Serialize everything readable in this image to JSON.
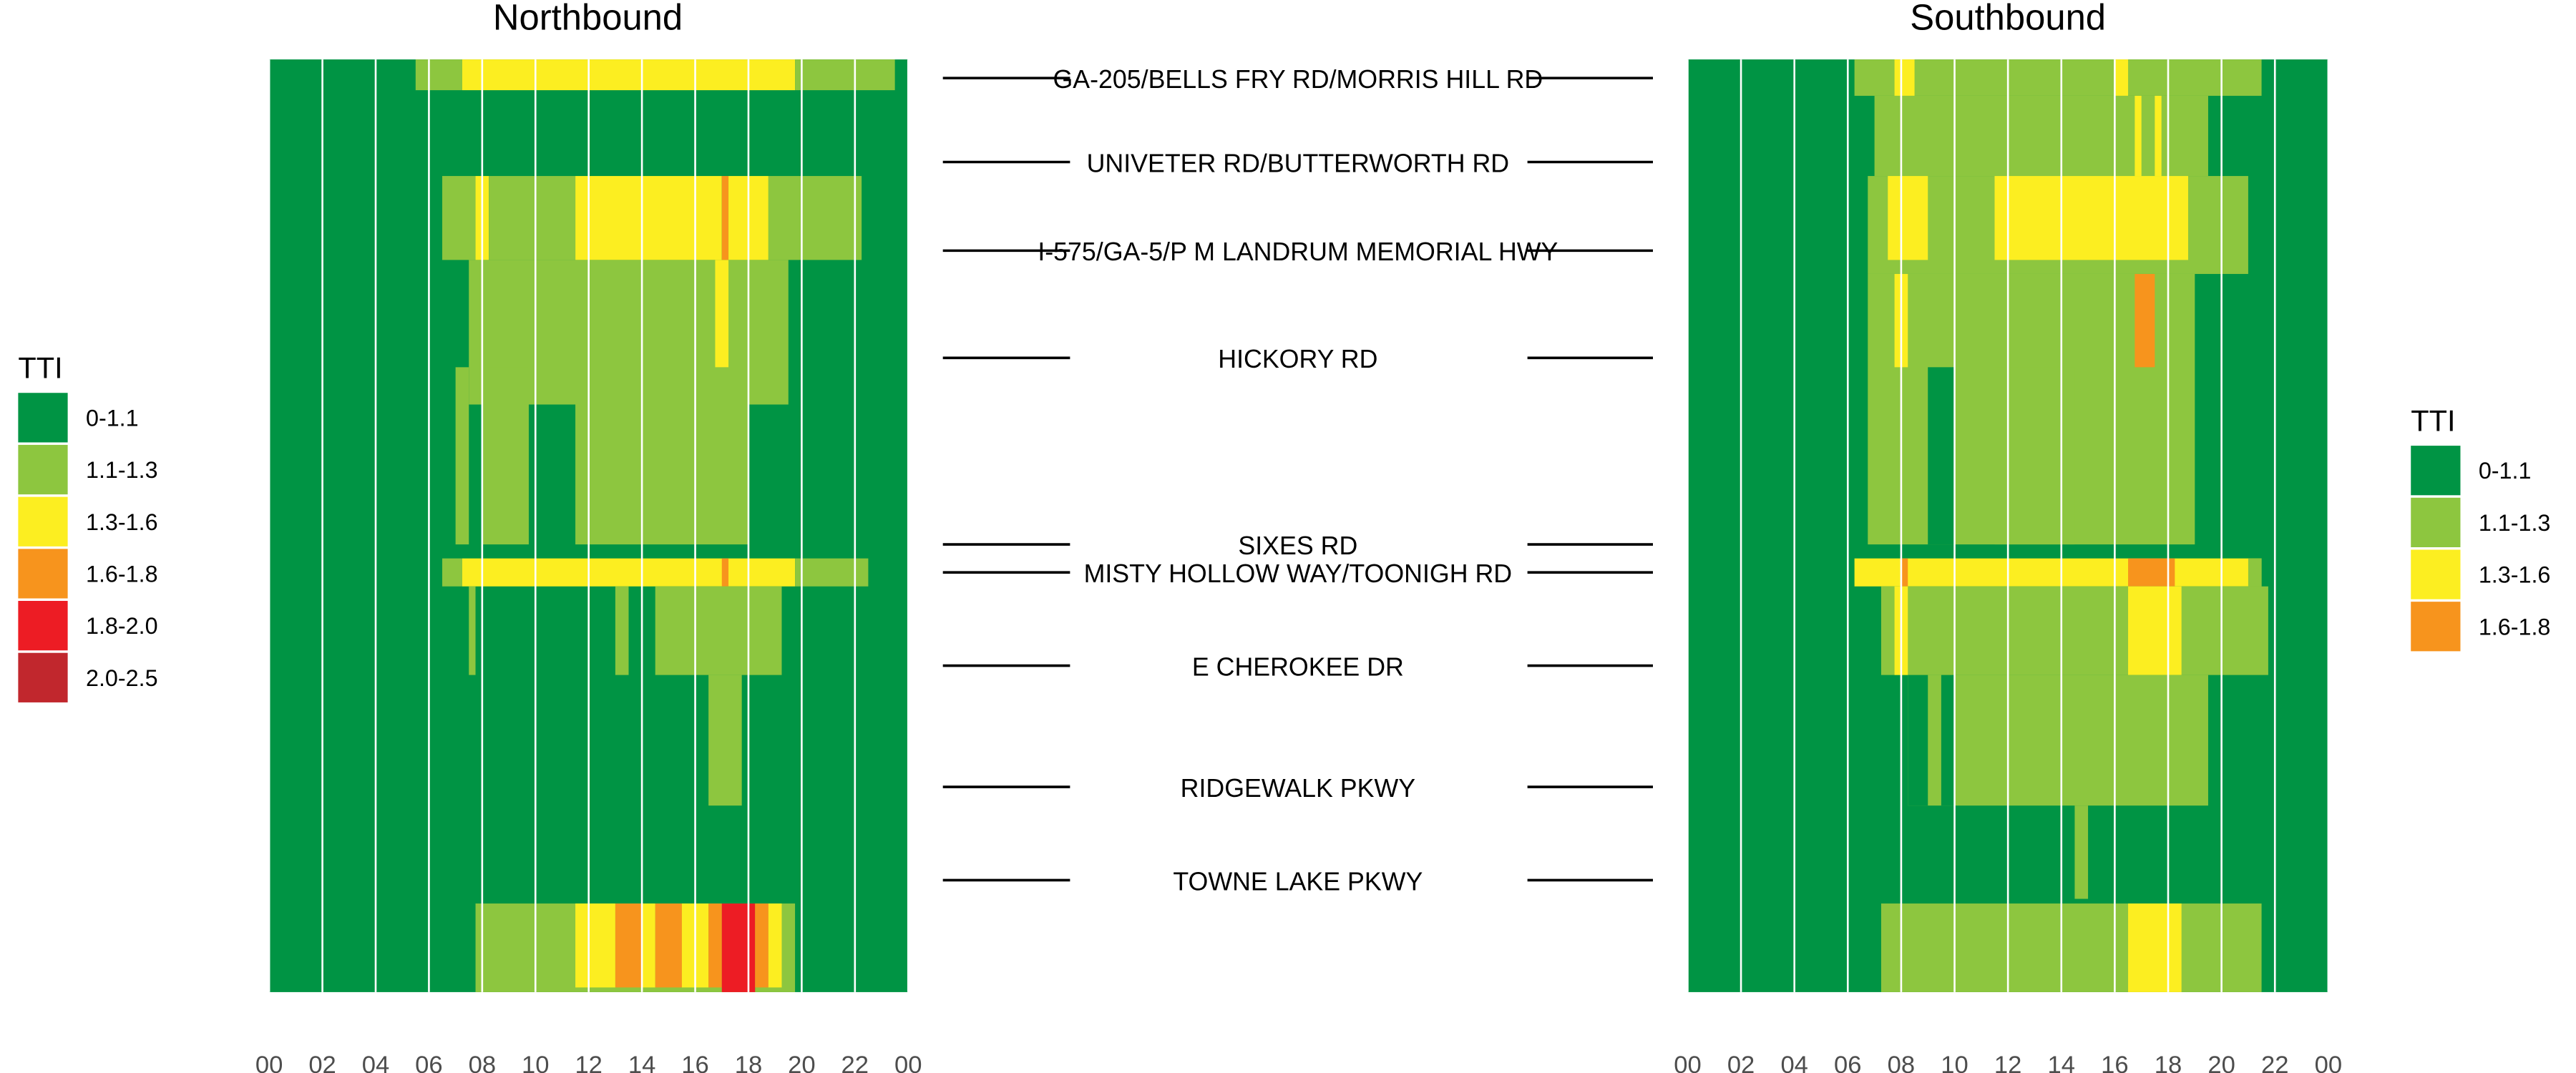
{
  "chart_data": {
    "type": "heatmap",
    "hour_ticks": [
      "00",
      "02",
      "04",
      "06",
      "08",
      "10",
      "12",
      "14",
      "16",
      "18",
      "20",
      "22",
      "00"
    ],
    "roads": [
      "GA-205/BELLS FRY RD/MORRIS HILL RD",
      "UNIVETER RD/BUTTERWORTH RD",
      "I-575/GA-5/P M LANDRUM MEMORIAL HWY",
      "HICKORY RD",
      "SIXES RD",
      "MISTY HOLLOW WAY/TOONIGH RD",
      "E CHEROKEE DR",
      "RIDGEWALK PKWY",
      "TOWNE LAKE PKWY"
    ],
    "road_positions": [
      2,
      11,
      20.5,
      32,
      52,
      55,
      65,
      78,
      88
    ],
    "y_extent": [
      0,
      100
    ],
    "x_extent_hours": [
      0,
      24
    ],
    "palette": {
      "0-1.1": "#009444",
      "1.1-1.3": "#8DC63F",
      "1.3-1.6": "#FCEE21",
      "1.6-1.8": "#F7941D",
      "1.8-2.0": "#ED1C24",
      "2.0-2.5": "#C1272D"
    },
    "panels": [
      {
        "title": "Northbound",
        "legend_title": "TTI",
        "legend": [
          "0-1.1",
          "1.1-1.3",
          "1.3-1.6",
          "1.6-1.8",
          "1.8-2.0",
          "2.0-2.5"
        ],
        "cells": [
          [
            5.5,
            7.25,
            0,
            3.3,
            "1.1-1.3"
          ],
          [
            7.25,
            19.75,
            0,
            3.3,
            "1.3-1.6"
          ],
          [
            19.75,
            23.5,
            0,
            3.3,
            "1.1-1.3"
          ],
          [
            6.5,
            7.75,
            12.5,
            21.5,
            "1.1-1.3"
          ],
          [
            7.75,
            8.25,
            12.5,
            21.5,
            "1.3-1.6"
          ],
          [
            8.25,
            11.5,
            12.5,
            21.5,
            "1.1-1.3"
          ],
          [
            11.5,
            17,
            12.5,
            21.5,
            "1.3-1.6"
          ],
          [
            17,
            17.25,
            12.5,
            21.5,
            "1.6-1.8"
          ],
          [
            17.25,
            18.75,
            12.5,
            21.5,
            "1.3-1.6"
          ],
          [
            18.75,
            22.25,
            12.5,
            21.5,
            "1.1-1.3"
          ],
          [
            7.5,
            19.5,
            21.5,
            37,
            "1.1-1.3"
          ],
          [
            16.75,
            17.25,
            21.5,
            33,
            "1.3-1.6"
          ],
          [
            7.0,
            7.5,
            33,
            52,
            "1.1-1.3"
          ],
          [
            8.0,
            9.75,
            33,
            52,
            "1.1-1.3"
          ],
          [
            11.5,
            18.0,
            37,
            52,
            "1.1-1.3"
          ],
          [
            6.5,
            7.25,
            53.5,
            56.5,
            "1.1-1.3"
          ],
          [
            7.25,
            19.75,
            53.5,
            56.5,
            "1.3-1.6"
          ],
          [
            17.0,
            17.25,
            53.5,
            56.5,
            "1.6-1.8"
          ],
          [
            19.75,
            22.5,
            53.5,
            56.5,
            "1.1-1.3"
          ],
          [
            13.0,
            13.5,
            56.5,
            66,
            "1.1-1.3"
          ],
          [
            14.5,
            19.25,
            56.5,
            66,
            "1.1-1.3"
          ],
          [
            7.5,
            7.75,
            56.5,
            66,
            "1.1-1.3"
          ],
          [
            16.5,
            17.75,
            66,
            80,
            "1.1-1.3"
          ],
          [
            7.75,
            19.75,
            90.5,
            100,
            "1.1-1.3"
          ],
          [
            11.5,
            13.0,
            90.5,
            99.5,
            "1.3-1.6"
          ],
          [
            13.0,
            14.0,
            90.5,
            99.5,
            "1.6-1.8"
          ],
          [
            14.0,
            14.5,
            90.5,
            99.5,
            "1.3-1.6"
          ],
          [
            14.5,
            15.5,
            90.5,
            99.5,
            "1.6-1.8"
          ],
          [
            15.5,
            16.5,
            90.5,
            99.5,
            "1.3-1.6"
          ],
          [
            16.5,
            17.0,
            90.5,
            99.5,
            "1.6-1.8"
          ],
          [
            17.0,
            18.25,
            90.5,
            100,
            "1.8-2.0"
          ],
          [
            18.25,
            18.75,
            90.5,
            99.5,
            "1.6-1.8"
          ],
          [
            18.75,
            19.25,
            90.5,
            99.5,
            "1.3-1.6"
          ]
        ]
      },
      {
        "title": "Southbound",
        "legend_title": "TTI",
        "legend": [
          "0-1.1",
          "1.1-1.3",
          "1.3-1.6",
          "1.6-1.8"
        ],
        "cells": [
          [
            6.25,
            21.5,
            0,
            3.9,
            "1.1-1.3"
          ],
          [
            7.75,
            8.5,
            0,
            3.9,
            "1.3-1.6"
          ],
          [
            16.0,
            16.5,
            0,
            3.9,
            "1.3-1.6"
          ],
          [
            7.0,
            19.5,
            3.9,
            12.5,
            "1.1-1.3"
          ],
          [
            16.75,
            17.0,
            3.9,
            12.5,
            "1.3-1.6"
          ],
          [
            17.5,
            17.75,
            3.9,
            12.5,
            "1.3-1.6"
          ],
          [
            6.75,
            21.0,
            12.5,
            23,
            "1.1-1.3"
          ],
          [
            7.5,
            9.0,
            12.5,
            21.5,
            "1.3-1.6"
          ],
          [
            11.5,
            18.75,
            12.5,
            21.5,
            "1.3-1.6"
          ],
          [
            6.75,
            19.0,
            23,
            52,
            "1.1-1.3"
          ],
          [
            7.75,
            8.25,
            23,
            33,
            "1.3-1.6"
          ],
          [
            16.75,
            17.5,
            23,
            33,
            "1.6-1.8"
          ],
          [
            9.0,
            10.0,
            33,
            52,
            "0-1.1"
          ],
          [
            11.5,
            14.5,
            33,
            52,
            "1.1-1.3"
          ],
          [
            6.25,
            21.5,
            53.5,
            56.5,
            "1.3-1.6"
          ],
          [
            8.0,
            8.25,
            53.5,
            56.5,
            "1.6-1.8"
          ],
          [
            16.5,
            18.25,
            53.5,
            56.5,
            "1.6-1.8"
          ],
          [
            21.0,
            21.5,
            53.5,
            56.5,
            "1.1-1.3"
          ],
          [
            7.25,
            21.75,
            56.5,
            66,
            "1.1-1.3"
          ],
          [
            16.5,
            18.5,
            56.5,
            66,
            "1.3-1.6"
          ],
          [
            7.75,
            8.25,
            56.5,
            66,
            "1.3-1.6"
          ],
          [
            8.25,
            19.5,
            66,
            80,
            "1.1-1.3"
          ],
          [
            8.25,
            9.0,
            66,
            80,
            "0-1.1"
          ],
          [
            9.5,
            10.0,
            66,
            80,
            "0-1.1"
          ],
          [
            14.5,
            15.0,
            80,
            90,
            "1.1-1.3"
          ],
          [
            7.25,
            21.5,
            90.5,
            100,
            "1.1-1.3"
          ],
          [
            16.5,
            18.5,
            90.5,
            100,
            "1.3-1.6"
          ]
        ]
      }
    ]
  }
}
